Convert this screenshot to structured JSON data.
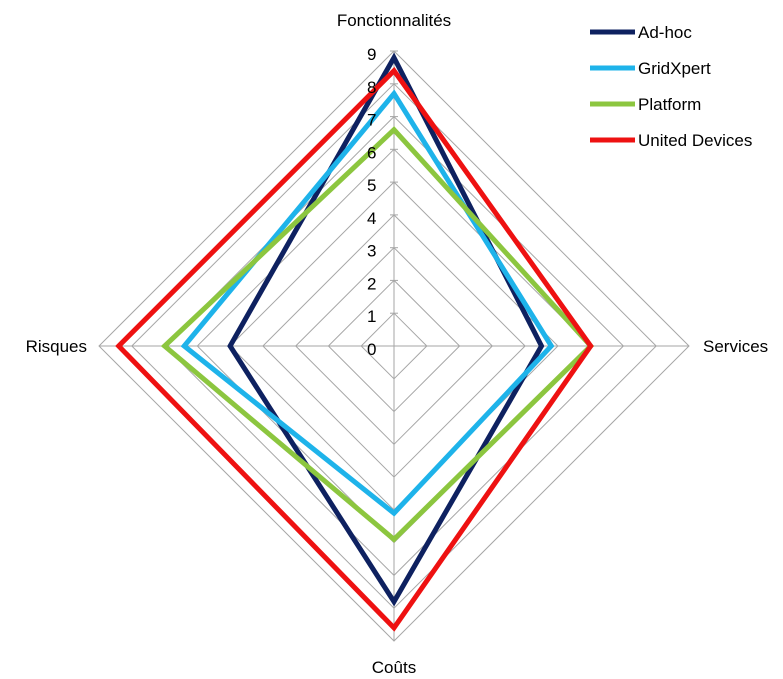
{
  "chart_data": {
    "type": "radar",
    "axes": [
      "Fonctionnalités",
      "Services",
      "Coûts",
      "Risques"
    ],
    "rmin": 0,
    "rmax": 9,
    "tick_step": 1,
    "ticks": [
      "0",
      "1",
      "2",
      "3",
      "4",
      "5",
      "6",
      "7",
      "8",
      "9"
    ],
    "grid": true,
    "legend_position": "top-right",
    "series": [
      {
        "name": "Ad-hoc",
        "color": "#0e2160",
        "values": [
          8.8,
          4.5,
          7.8,
          5.0
        ]
      },
      {
        "name": "GridXpert",
        "color": "#1eb3ea",
        "values": [
          7.7,
          4.8,
          5.1,
          6.4
        ]
      },
      {
        "name": "Platform",
        "color": "#8cc63f",
        "values": [
          6.6,
          6.0,
          5.9,
          7.0
        ]
      },
      {
        "name": "United Devices",
        "color": "#ee1111",
        "values": [
          8.4,
          6.0,
          8.6,
          8.4
        ]
      }
    ]
  }
}
